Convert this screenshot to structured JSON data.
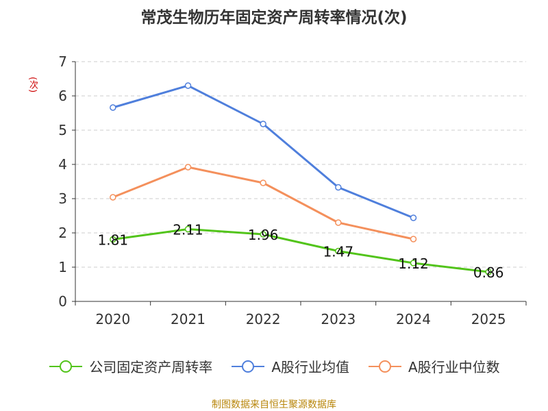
{
  "chart_data": {
    "type": "line",
    "title": "常茂生物历年固定资产周转率情况(次)",
    "ylabel": "(次)",
    "xlabel": "",
    "categories": [
      "2020",
      "2021",
      "2022",
      "2023",
      "2024",
      "2025"
    ],
    "ylim": [
      0,
      7
    ],
    "yticks": [
      "0",
      "1",
      "2",
      "3",
      "4",
      "5",
      "6",
      "7"
    ],
    "grid": true,
    "legend_position": "bottom",
    "series": [
      {
        "name": "公司固定资产周转率",
        "color": "#52c41a",
        "values": [
          1.81,
          2.11,
          1.96,
          1.47,
          1.12,
          0.86
        ],
        "labels": [
          "1.81",
          "2.11",
          "1.96",
          "1.47",
          "1.12",
          "0.86"
        ]
      },
      {
        "name": "A股行业均值",
        "color": "#4f7fdc",
        "values": [
          5.66,
          6.3,
          5.18,
          3.33,
          2.44,
          null
        ]
      },
      {
        "name": "A股行业中位数",
        "color": "#f4905c",
        "values": [
          3.04,
          3.92,
          3.46,
          2.3,
          1.82,
          null
        ]
      }
    ]
  },
  "source": "制图数据来自恒生聚源数据库"
}
